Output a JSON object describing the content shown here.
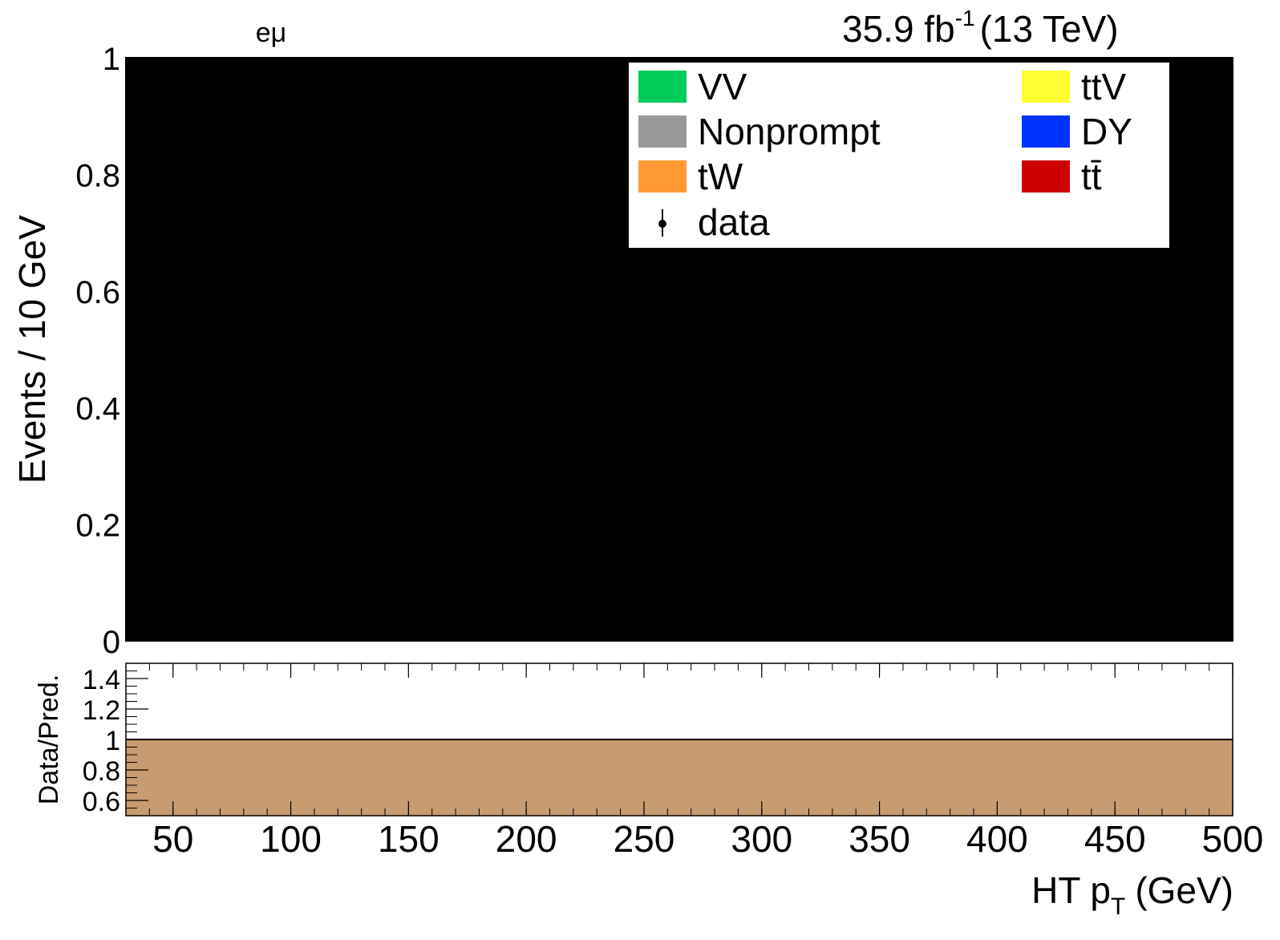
{
  "header": {
    "channel_label": "eμ",
    "lumi_value": "35.9 fb",
    "lumi_exponent": "-1",
    "lumi_energy": "(13 TeV)"
  },
  "legend": {
    "entries": [
      {
        "label": "VV",
        "color": "#00cc5a",
        "kind": "fill"
      },
      {
        "label": "ttV",
        "color": "#ffff33",
        "kind": "fill"
      },
      {
        "label": "Nonprompt",
        "color": "#999999",
        "kind": "fill"
      },
      {
        "label": "DY",
        "color": "#0033ff",
        "kind": "fill"
      },
      {
        "label": "tW",
        "color": "#ff9933",
        "kind": "fill"
      },
      {
        "label": "tt̄",
        "color": "#cc0000",
        "kind": "fill"
      },
      {
        "label": "data",
        "color": "#000000",
        "kind": "marker"
      }
    ]
  },
  "chart_data": [
    {
      "type": "area",
      "ylabel": "Events / 10 GeV",
      "xlim": [
        30,
        500
      ],
      "ylim": [
        0,
        1
      ],
      "yticks": [
        "0",
        "0.2",
        "0.4",
        "0.6",
        "0.8",
        "1"
      ],
      "fill_color": "#000000",
      "grid": false,
      "legend_position": "top-right"
    },
    {
      "type": "area",
      "xlabel_main": "HT p",
      "xlabel_sub": "T",
      "xlabel_unit": "(GeV)",
      "ylabel": "Data/Pred.",
      "xlim": [
        30,
        500
      ],
      "ylim": [
        0.5,
        1.5
      ],
      "xticks": [
        "50",
        "100",
        "150",
        "200",
        "250",
        "300",
        "350",
        "400",
        "450",
        "500"
      ],
      "yticks": [
        "0.6",
        "0.8",
        "1",
        "1.2",
        "1.4"
      ],
      "band_upper": 1.0,
      "band_lower": 0.5,
      "band_color": "#c89b70",
      "reference_line": 1.0
    }
  ]
}
